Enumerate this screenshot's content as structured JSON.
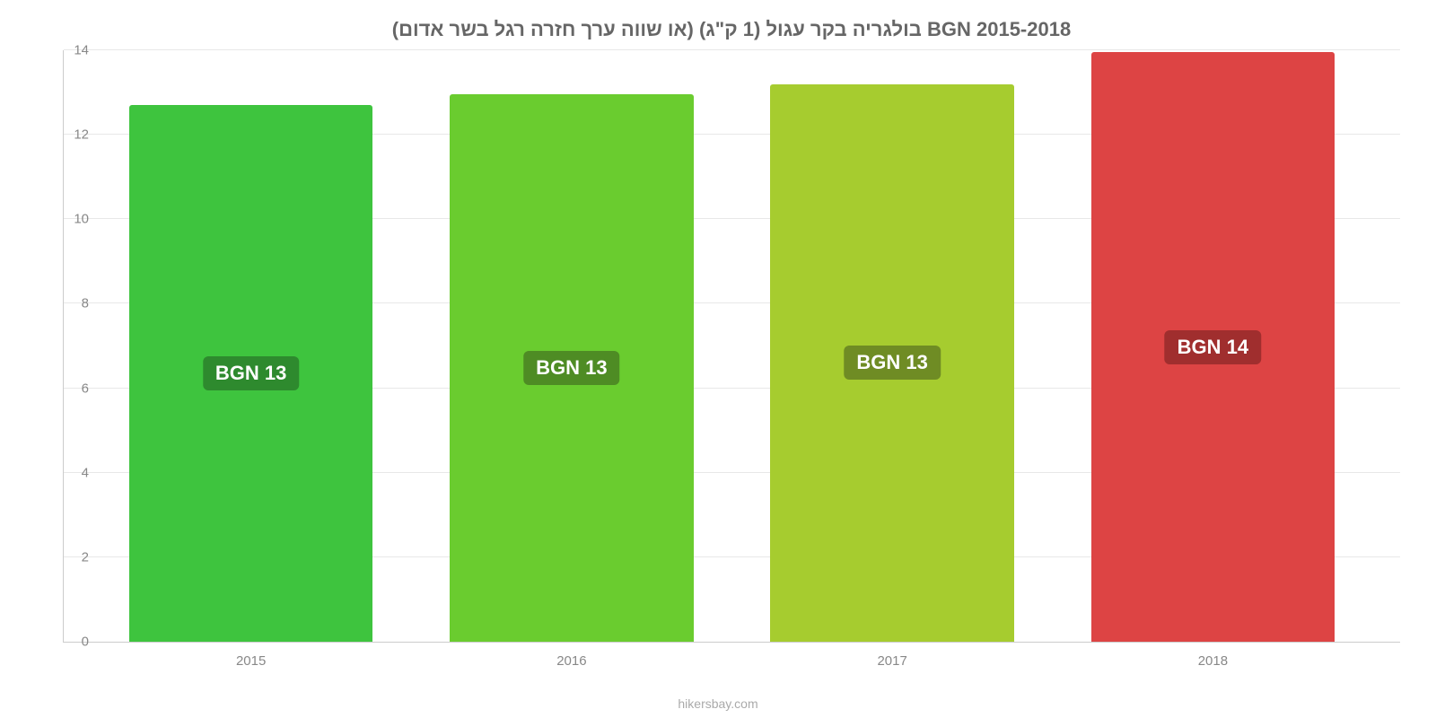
{
  "chart": {
    "type": "bar",
    "title": "בולגריה בקר עגול (1 ק\"ג) (או שווה ערך חזרה רגל בשר אדום) BGN 2015-2018",
    "title_fontsize": 22,
    "title_color": "#666666",
    "background_color": "#ffffff",
    "grid_color": "#e8e8e8",
    "axis_line_color": "#cccccc",
    "axis_text_color": "#888888",
    "categories": [
      "2015",
      "2016",
      "2017",
      "2018"
    ],
    "values": [
      12.7,
      12.95,
      13.2,
      13.95
    ],
    "bar_labels": [
      "BGN 13",
      "BGN 13",
      "BGN 13",
      "BGN 14"
    ],
    "bar_colors": [
      "#3ec43e",
      "#6acc2f",
      "#a6cc2f",
      "#dd4444"
    ],
    "bar_label_bg": [
      "#2e8a2e",
      "#4e8c24",
      "#6f8c24",
      "#a02e2e"
    ],
    "bar_label_color": "#ffffff",
    "bar_label_fontsize": 22,
    "bar_width": 0.76,
    "ylim": [
      0,
      14
    ],
    "yticks": [
      0,
      2,
      4,
      6,
      8,
      10,
      12,
      14
    ],
    "x_label_fontsize": 15,
    "y_label_fontsize": 15,
    "attribution": "hikersbay.com",
    "attribution_color": "#aaaaaa"
  }
}
